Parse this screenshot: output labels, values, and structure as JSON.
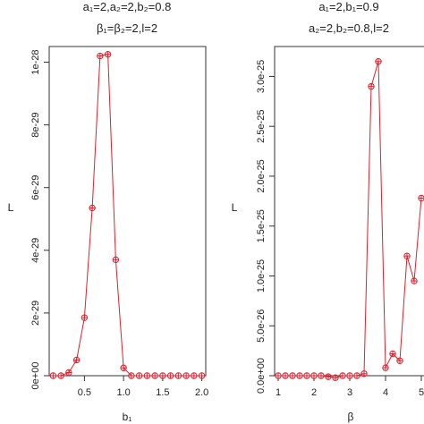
{
  "chart_data": [
    {
      "type": "line",
      "title": [
        "a₁=2,a₂=2,b₂=0.8",
        "β₁=β₂=2,l=2"
      ],
      "xlabel": "b₁",
      "ylabel": "L",
      "xlim": [
        0.05,
        2.05
      ],
      "ylim": [
        0,
        1.05e-28
      ],
      "xticks": [
        0.5,
        1.0,
        1.5,
        2.0
      ],
      "xtick_labels": [
        "0.5",
        "1.0",
        "1.5",
        "2.0"
      ],
      "yticks": [
        0,
        2e-29,
        4e-29,
        6e-29,
        8e-29,
        1e-28
      ],
      "ytick_labels": [
        "0e+00",
        "2e-29",
        "4e-29",
        "6e-29",
        "8e-29",
        "1e-28"
      ],
      "color": "#e0202c",
      "marker": "circle-plus",
      "grid": false,
      "series": [
        {
          "x": [
            0.1,
            0.2,
            0.3,
            0.4,
            0.5,
            0.6,
            0.7,
            0.8,
            0.9,
            1.0,
            1.1,
            1.2,
            1.3,
            1.4,
            1.5,
            1.6,
            1.7,
            1.8,
            1.9,
            2.0
          ],
          "y": [
            0,
            0,
            1e-30,
            5e-30,
            1.85e-29,
            5.35e-29,
            1.02e-28,
            1.025e-28,
            3.7e-29,
            2.5e-30,
            0,
            0,
            0,
            0,
            0,
            0,
            0,
            0,
            0,
            0
          ]
        }
      ]
    },
    {
      "type": "line",
      "title": [
        "a₁=2,b₁=0.9",
        "a₂=2,b₂=0.8,l=2"
      ],
      "xlabel": "β",
      "ylabel": "L",
      "xlim": [
        0.9,
        5.1
      ],
      "ylim": [
        0,
        3.3e-25
      ],
      "xticks": [
        1,
        2,
        3,
        4,
        5
      ],
      "xtick_labels": [
        "1",
        "2",
        "3",
        "4",
        "5"
      ],
      "yticks": [
        0,
        5e-26,
        1e-25,
        1.5e-25,
        2e-25,
        2.5e-25,
        3e-25
      ],
      "ytick_labels": [
        "0.0e+00",
        "5.0e-26",
        "1.0e-25",
        "1.5e-25",
        "2.0e-25",
        "2.5e-25",
        "3.0e-25"
      ],
      "color": "#e0202c",
      "marker": "circle-plus",
      "grid": false,
      "series": [
        {
          "x": [
            1.0,
            1.2,
            1.4,
            1.6,
            1.8,
            2.0,
            2.2,
            2.4,
            2.6,
            2.8,
            3.0,
            3.2,
            3.4,
            3.6,
            3.8,
            4.0,
            4.2,
            4.4,
            4.6,
            4.8,
            5.0
          ],
          "y": [
            0,
            0,
            0,
            0,
            0,
            0,
            0,
            -1e-27,
            -2e-27,
            0,
            0,
            0,
            2e-27,
            2.9e-25,
            3.15e-25,
            8e-27,
            2.2e-26,
            1.5e-26,
            1.2e-25,
            9.5e-26,
            1.78e-25
          ]
        }
      ]
    }
  ]
}
